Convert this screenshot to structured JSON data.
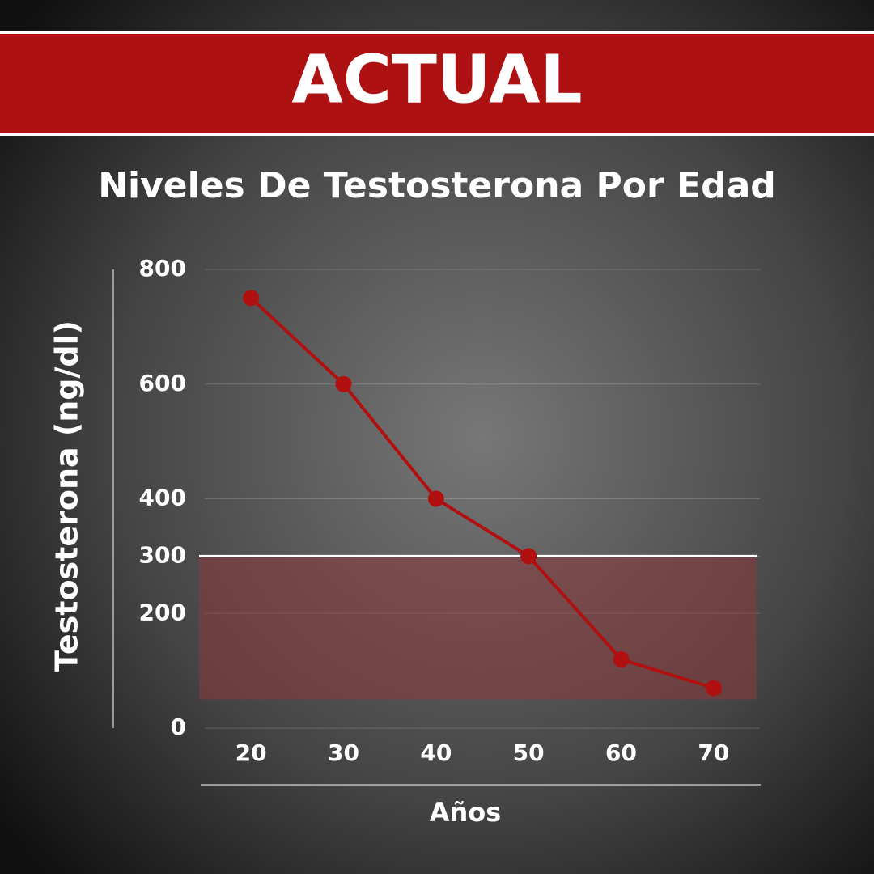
{
  "chart_data": {
    "type": "line",
    "banner": "ACTUAL",
    "title": "Niveles De Testosterona Por Edad",
    "x_label": "Años",
    "y_label": "Testosterona (ng/dl)",
    "x": [
      20,
      30,
      40,
      50,
      60,
      70
    ],
    "xlim": [
      15,
      75
    ],
    "xticks": [
      20,
      30,
      40,
      50,
      60,
      70
    ],
    "series": [
      {
        "color": "#b01010",
        "values": [
          750,
          600,
          400,
          300,
          120,
          70
        ]
      }
    ],
    "ylim": [
      0,
      800
    ],
    "yticks": [
      0,
      200,
      300,
      400,
      600,
      800
    ],
    "shaded_range": [
      50,
      300
    ],
    "shaded_color": "#8a3a3a",
    "threshold": 300,
    "grid": true
  }
}
